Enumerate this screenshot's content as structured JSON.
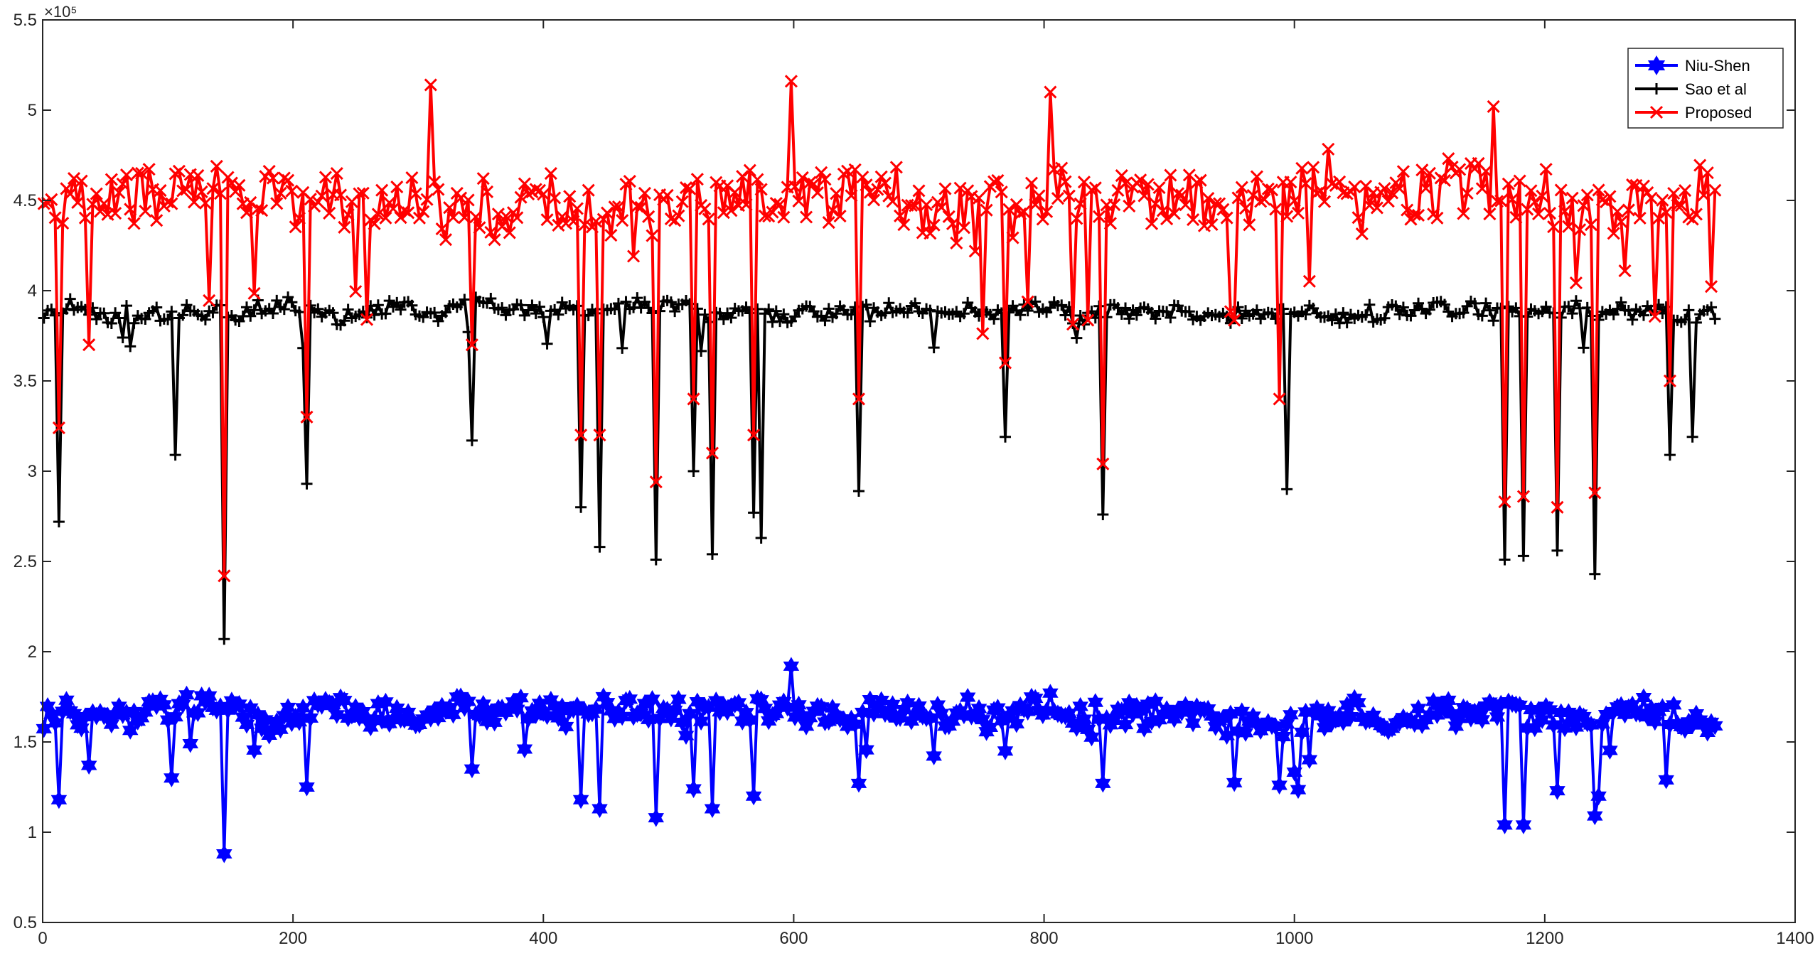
{
  "chart_data": {
    "type": "line",
    "title": "",
    "xlabel": "",
    "ylabel": "",
    "y_exponent_label": "×10⁵",
    "y_scale_factor": 100000,
    "xlim": [
      0,
      1400
    ],
    "ylim": [
      0.5,
      5.5
    ],
    "x_ticks": [
      0,
      200,
      400,
      600,
      800,
      1000,
      1200,
      1400
    ],
    "x_tick_labels": [
      "0",
      "200",
      "400",
      "600",
      "800",
      "1000",
      "1200",
      "1400"
    ],
    "y_ticks": [
      0.5,
      1,
      1.5,
      2,
      2.5,
      3,
      3.5,
      4,
      4.5,
      5,
      5.5
    ],
    "y_tick_labels": [
      "0.5",
      "1",
      "1.5",
      "2",
      "2.5",
      "3",
      "3.5",
      "4",
      "4.5",
      "5",
      "5.5"
    ],
    "grid": false,
    "legend_position": "top-right",
    "x_range": [
      1,
      1338
    ],
    "series": [
      {
        "name": "Niu-Shen",
        "color": "#0000ff",
        "marker": "hexagram",
        "baseline": 1.66,
        "noise": 0.09,
        "values_note_points": [
          [
            15,
            1.18
          ],
          [
            38,
            1.37
          ],
          [
            105,
            1.3
          ],
          [
            147,
            0.88
          ],
          [
            212,
            1.25
          ],
          [
            345,
            1.35
          ],
          [
            430,
            1.18
          ],
          [
            447,
            1.13
          ],
          [
            490,
            1.08
          ],
          [
            520,
            1.24
          ],
          [
            537,
            1.13
          ],
          [
            570,
            1.2
          ],
          [
            600,
            1.92
          ],
          [
            652,
            1.27
          ],
          [
            770,
            1.45
          ],
          [
            848,
            1.27
          ],
          [
            988,
            1.26
          ],
          [
            1170,
            1.04
          ],
          [
            1185,
            1.04
          ],
          [
            1212,
            1.23
          ],
          [
            1240,
            1.09
          ],
          [
            1298,
            1.29
          ],
          [
            1245,
            1.2
          ]
        ]
      },
      {
        "name": "Sao et al",
        "color": "#000000",
        "marker": "plus",
        "baseline": 3.88,
        "noise": 0.06,
        "values_note_points": [
          [
            15,
            2.72
          ],
          [
            107,
            3.09
          ],
          [
            147,
            2.07
          ],
          [
            212,
            2.93
          ],
          [
            345,
            3.17
          ],
          [
            430,
            2.8
          ],
          [
            447,
            2.58
          ],
          [
            490,
            2.51
          ],
          [
            520,
            3.0
          ],
          [
            537,
            2.54
          ],
          [
            570,
            2.77
          ],
          [
            575,
            2.63
          ],
          [
            652,
            2.89
          ],
          [
            770,
            3.19
          ],
          [
            848,
            2.76
          ],
          [
            995,
            2.9
          ],
          [
            1170,
            2.51
          ],
          [
            1185,
            2.53
          ],
          [
            1212,
            2.56
          ],
          [
            1240,
            2.43
          ],
          [
            1300,
            3.09
          ],
          [
            1320,
            3.19
          ]
        ]
      },
      {
        "name": "Proposed",
        "color": "#ff0000",
        "marker": "x",
        "baseline": 4.5,
        "noise": 0.2,
        "values_note_points": [
          [
            15,
            3.24
          ],
          [
            38,
            3.7
          ],
          [
            147,
            2.42
          ],
          [
            212,
            3.3
          ],
          [
            310,
            5.14
          ],
          [
            345,
            3.7
          ],
          [
            430,
            3.2
          ],
          [
            447,
            3.2
          ],
          [
            490,
            2.94
          ],
          [
            520,
            3.4
          ],
          [
            537,
            3.1
          ],
          [
            570,
            3.2
          ],
          [
            600,
            5.16
          ],
          [
            652,
            3.4
          ],
          [
            770,
            3.6
          ],
          [
            805,
            5.1
          ],
          [
            848,
            3.04
          ],
          [
            990,
            3.4
          ],
          [
            1170,
            2.83
          ],
          [
            1185,
            2.86
          ],
          [
            1212,
            2.8
          ],
          [
            1240,
            2.88
          ],
          [
            1300,
            3.5
          ],
          [
            1160,
            5.02
          ]
        ]
      }
    ]
  }
}
